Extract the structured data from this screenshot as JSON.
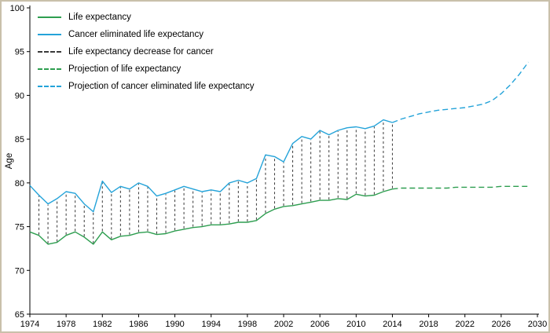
{
  "legend": {
    "entries": [
      {
        "label": "Life expectancy",
        "color": "#2e9e50",
        "dash": "solid"
      },
      {
        "label": "Cancer eliminated life expectancy",
        "color": "#24a3d9",
        "dash": "solid"
      },
      {
        "label": "Life expectancy decrease for cancer",
        "color": "#3a3a3a",
        "dash": "dashed"
      },
      {
        "label": "Projection of life expectancy",
        "color": "#2e9e50",
        "dash": "dashed"
      },
      {
        "label": "Projection of cancer eliminated life expectancy",
        "color": "#24a3d9",
        "dash": "dashed"
      }
    ]
  },
  "chart_data": {
    "type": "line",
    "title": "",
    "xlabel": "",
    "ylabel": "Age",
    "xlim": [
      1974,
      2030
    ],
    "ylim": [
      65,
      100
    ],
    "x_ticks": [
      1974,
      1978,
      1982,
      1986,
      1990,
      1994,
      1998,
      2002,
      2006,
      2010,
      2014,
      2018,
      2022,
      2026,
      2030
    ],
    "y_ticks": [
      65,
      70,
      75,
      80,
      85,
      90,
      95,
      100
    ],
    "grid": false,
    "legend_position": "top-left",
    "colors": {
      "border": "#c9c0ab",
      "axis": "#000000",
      "connector": "#3a3a3a"
    },
    "series": [
      {
        "name": "Life expectancy",
        "color": "#2e9e50",
        "style": "solid",
        "x": [
          1974,
          1975,
          1976,
          1977,
          1978,
          1979,
          1980,
          1981,
          1982,
          1983,
          1984,
          1985,
          1986,
          1987,
          1988,
          1989,
          1990,
          1991,
          1992,
          1993,
          1994,
          1995,
          1996,
          1997,
          1998,
          1999,
          2000,
          2001,
          2002,
          2003,
          2004,
          2005,
          2006,
          2007,
          2008,
          2009,
          2010,
          2011,
          2012,
          2013,
          2014
        ],
        "values": [
          74.4,
          74.0,
          73.0,
          73.2,
          74.0,
          74.4,
          73.8,
          73.0,
          74.4,
          73.5,
          73.9,
          74.0,
          74.3,
          74.4,
          74.1,
          74.2,
          74.5,
          74.7,
          74.9,
          75.0,
          75.2,
          75.2,
          75.3,
          75.5,
          75.5,
          75.7,
          76.5,
          77.0,
          77.3,
          77.4,
          77.6,
          77.8,
          78.0,
          78.0,
          78.2,
          78.1,
          78.7,
          78.5,
          78.6,
          79.0,
          79.3
        ]
      },
      {
        "name": "Cancer eliminated life expectancy",
        "color": "#24a3d9",
        "style": "solid",
        "x": [
          1974,
          1975,
          1976,
          1977,
          1978,
          1979,
          1980,
          1981,
          1982,
          1983,
          1984,
          1985,
          1986,
          1987,
          1988,
          1989,
          1990,
          1991,
          1992,
          1993,
          1994,
          1995,
          1996,
          1997,
          1998,
          1999,
          2000,
          2001,
          2002,
          2003,
          2004,
          2005,
          2006,
          2007,
          2008,
          2009,
          2010,
          2011,
          2012,
          2013,
          2014
        ],
        "values": [
          79.7,
          78.6,
          77.6,
          78.2,
          79.0,
          78.8,
          77.6,
          76.7,
          80.2,
          78.9,
          79.6,
          79.3,
          80.0,
          79.6,
          78.5,
          78.8,
          79.2,
          79.6,
          79.3,
          79.0,
          79.2,
          79.0,
          80.0,
          80.3,
          80.0,
          80.5,
          83.2,
          83.0,
          82.4,
          84.5,
          85.3,
          85.0,
          86.0,
          85.5,
          86.0,
          86.3,
          86.4,
          86.2,
          86.5,
          87.2,
          86.9
        ]
      },
      {
        "name": "Projection of life expectancy",
        "color": "#2e9e50",
        "style": "dashed",
        "x": [
          2014,
          2015,
          2016,
          2017,
          2018,
          2019,
          2020,
          2021,
          2022,
          2023,
          2024,
          2025,
          2026,
          2027,
          2028,
          2029
        ],
        "values": [
          79.3,
          79.4,
          79.4,
          79.4,
          79.4,
          79.4,
          79.4,
          79.5,
          79.5,
          79.5,
          79.5,
          79.5,
          79.6,
          79.6,
          79.6,
          79.6
        ]
      },
      {
        "name": "Projection of cancer eliminated life expectancy",
        "color": "#24a3d9",
        "style": "dashed",
        "x": [
          2014,
          2015,
          2016,
          2017,
          2018,
          2019,
          2020,
          2021,
          2022,
          2023,
          2024,
          2025,
          2026,
          2027,
          2028,
          2029
        ],
        "values": [
          86.9,
          87.3,
          87.6,
          87.9,
          88.1,
          88.3,
          88.4,
          88.5,
          88.6,
          88.8,
          89.0,
          89.4,
          90.2,
          91.2,
          92.4,
          93.8
        ]
      }
    ],
    "connectors": {
      "name": "Life expectancy decrease for cancer",
      "from_series": 0,
      "to_series": 1,
      "color": "#3a3a3a",
      "style": "dashed"
    }
  }
}
